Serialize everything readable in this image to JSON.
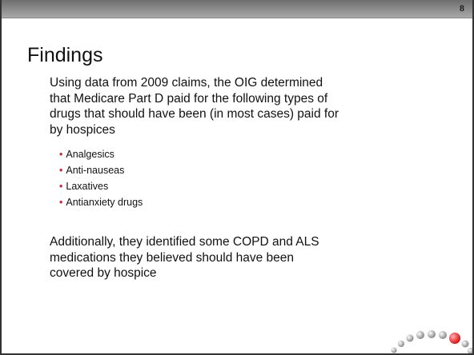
{
  "slide": {
    "number": "8",
    "title": "Findings",
    "intro_lines": [
      "Using data from 2009 claims, the OIG determined",
      "that Medicare Part D paid for the following types of",
      "drugs that should have been (in most cases) paid for",
      "by hospices"
    ],
    "bullets": [
      "Analgesics",
      "Anti-nauseas",
      "Laxatives",
      "Antianxiety drugs"
    ],
    "closing_lines": [
      "Additionally, they identified some COPD and ALS",
      "medications they believed should have been",
      "covered by hospice"
    ]
  }
}
